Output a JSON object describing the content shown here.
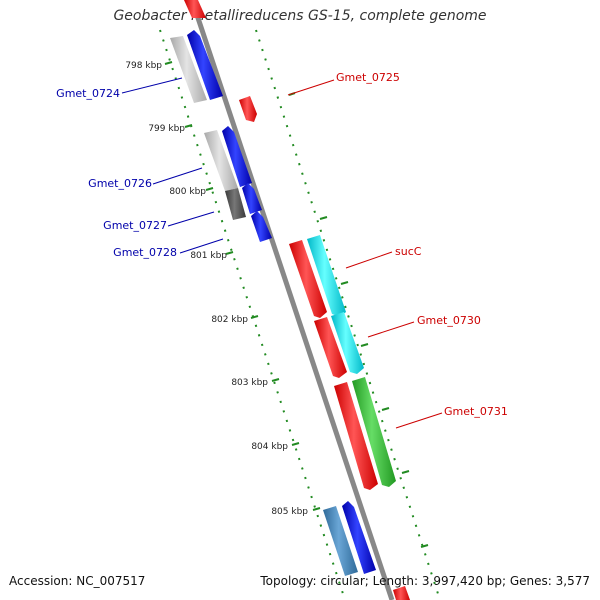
{
  "title": "Geobacter metallireducens GS-15, complete genome",
  "accession": "Accession: NC_007517",
  "topology": "Topology: circular; Length: 3,997,420 bp; Genes: 3,577",
  "ticks": [
    "798 kbp",
    "799 kbp",
    "800 kbp",
    "801 kbp",
    "802 kbp",
    "803 kbp",
    "804 kbp",
    "805 kbp"
  ],
  "genes_left": [
    {
      "name": "Gmet_0724",
      "color": "#0000aa"
    },
    {
      "name": "Gmet_0726",
      "color": "#0000aa"
    },
    {
      "name": "Gmet_0727",
      "color": "#0000aa"
    },
    {
      "name": "Gmet_0728",
      "color": "#0000aa"
    }
  ],
  "genes_right": [
    {
      "name": "Gmet_0725",
      "color": "#cc0000"
    },
    {
      "name": "sucC",
      "color": "#cc0000"
    },
    {
      "name": "Gmet_0730",
      "color": "#cc0000"
    },
    {
      "name": "Gmet_0731",
      "color": "#cc0000"
    }
  ],
  "colors": {
    "forward_cds": "#ff0000",
    "reverse_cds": "#0000ff",
    "cog_cyan": "#00e5ee",
    "cog_green": "#33cc33",
    "cog_grey_light": "#c8c8c8",
    "cog_grey_dark": "#555555",
    "cog_steelblue": "#4682b4",
    "backbone": "#888888",
    "gc_ticks": "#228b22"
  }
}
